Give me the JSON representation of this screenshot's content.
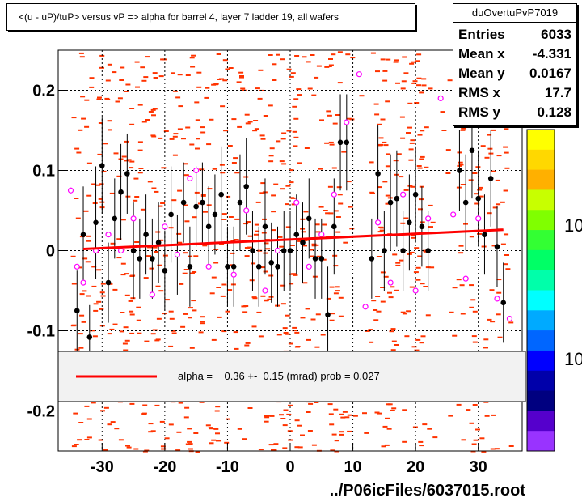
{
  "title": "<(u - uP)/tuP> versus   vP => alpha for barrel 4, layer 7 ladder 19, all wafers",
  "stats": {
    "name": "duOvertuPvP7019",
    "rows": [
      {
        "key": "Entries",
        "value": "6033"
      },
      {
        "key": "Mean x",
        "value": "-4.331"
      },
      {
        "key": "Mean y",
        "value": "0.0167"
      },
      {
        "key": "RMS x",
        "value": "17.7"
      },
      {
        "key": "RMS y",
        "value": "0.128"
      }
    ]
  },
  "fit_text": "alpha =    0.36 +-  0.15 (mrad) prob = 0.027",
  "file_label": "../P06icFiles/6037015.root",
  "colorbar_labels": [
    "10",
    "10"
  ],
  "colors": {
    "fit": "#ff0000",
    "hist": "#ff3300",
    "profile": "#000000",
    "open": "#ff00ff"
  },
  "chart_data": {
    "type": "scatter",
    "xlim": [
      -37,
      37
    ],
    "ylim": [
      -0.25,
      0.25
    ],
    "x_ticks": [
      -30,
      -20,
      -10,
      0,
      10,
      20,
      30
    ],
    "y_ticks": [
      -0.2,
      -0.1,
      0,
      0.1,
      0.2
    ],
    "x_tick_labels": [
      "-30",
      "-20",
      "-10",
      "0",
      "10",
      "20",
      "30"
    ],
    "y_tick_labels": [
      "-0.2",
      "-0.1",
      "0",
      "0.1",
      "0.2"
    ],
    "fit_line": {
      "x": [
        -33,
        34
      ],
      "y": [
        0.002,
        0.026
      ]
    },
    "profile_points": [
      {
        "x": -34,
        "y": -0.075,
        "e": 0.05
      },
      {
        "x": -33,
        "y": 0.02,
        "e": 0.06
      },
      {
        "x": -32,
        "y": -0.108,
        "e": 0.04
      },
      {
        "x": -31,
        "y": 0.035,
        "e": 0.07
      },
      {
        "x": -30,
        "y": 0.106,
        "e": 0.06
      },
      {
        "x": -29,
        "y": -0.04,
        "e": 0.05
      },
      {
        "x": -28,
        "y": 0.04,
        "e": 0.05
      },
      {
        "x": -27,
        "y": 0.073,
        "e": 0.06
      },
      {
        "x": -26,
        "y": 0.096,
        "e": 0.05
      },
      {
        "x": -25,
        "y": 0.0,
        "e": 0.06
      },
      {
        "x": -24,
        "y": -0.01,
        "e": 0.05
      },
      {
        "x": -23,
        "y": 0.02,
        "e": 0.05
      },
      {
        "x": -22,
        "y": -0.01,
        "e": 0.05
      },
      {
        "x": -21,
        "y": 0.01,
        "e": 0.05
      },
      {
        "x": -20,
        "y": -0.025,
        "e": 0.05
      },
      {
        "x": -19,
        "y": 0.045,
        "e": 0.06
      },
      {
        "x": -18,
        "y": -0.005,
        "e": 0.05
      },
      {
        "x": -17,
        "y": 0.06,
        "e": 0.05
      },
      {
        "x": -16,
        "y": -0.02,
        "e": 0.05
      },
      {
        "x": -15,
        "y": 0.055,
        "e": 0.05
      },
      {
        "x": -14,
        "y": 0.06,
        "e": 0.05
      },
      {
        "x": -13,
        "y": 0.03,
        "e": 0.05
      },
      {
        "x": -12,
        "y": 0.045,
        "e": 0.05
      },
      {
        "x": -11,
        "y": 0.07,
        "e": 0.06
      },
      {
        "x": -10,
        "y": -0.02,
        "e": 0.05
      },
      {
        "x": -9,
        "y": -0.02,
        "e": 0.05
      },
      {
        "x": -8,
        "y": 0.06,
        "e": 0.06
      },
      {
        "x": -7,
        "y": 0.08,
        "e": 0.06
      },
      {
        "x": -6,
        "y": 0.0,
        "e": 0.05
      },
      {
        "x": -5,
        "y": -0.02,
        "e": 0.05
      },
      {
        "x": -4,
        "y": 0.03,
        "e": 0.06
      },
      {
        "x": -3,
        "y": -0.015,
        "e": 0.05
      },
      {
        "x": -2,
        "y": -0.02,
        "e": 0.05
      },
      {
        "x": -1,
        "y": 0.0,
        "e": 0.05
      },
      {
        "x": 0,
        "y": 0.0,
        "e": 0.05
      },
      {
        "x": 1,
        "y": 0.02,
        "e": 0.05
      },
      {
        "x": 2,
        "y": 0.01,
        "e": 0.05
      },
      {
        "x": 3,
        "y": 0.04,
        "e": 0.05
      },
      {
        "x": 4,
        "y": -0.01,
        "e": 0.05
      },
      {
        "x": 5,
        "y": -0.01,
        "e": 0.05
      },
      {
        "x": 6,
        "y": -0.08,
        "e": 0.06
      },
      {
        "x": 7,
        "y": 0.03,
        "e": 0.06
      },
      {
        "x": 8,
        "y": 0.135,
        "e": 0.06
      },
      {
        "x": 9,
        "y": 0.135,
        "e": 0.06
      },
      {
        "x": 13,
        "y": -0.01,
        "e": 0.05
      },
      {
        "x": 14,
        "y": 0.096,
        "e": 0.06
      },
      {
        "x": 15,
        "y": 0.0,
        "e": 0.05
      },
      {
        "x": 16,
        "y": 0.06,
        "e": 0.06
      },
      {
        "x": 17,
        "y": 0.065,
        "e": 0.06
      },
      {
        "x": 18,
        "y": 0.0,
        "e": 0.05
      },
      {
        "x": 19,
        "y": 0.035,
        "e": 0.06
      },
      {
        "x": 20,
        "y": 0.07,
        "e": 0.06
      },
      {
        "x": 21,
        "y": 0.03,
        "e": 0.05
      },
      {
        "x": 22,
        "y": 0.0,
        "e": 0.05
      },
      {
        "x": 27,
        "y": 0.1,
        "e": 0.05
      },
      {
        "x": 28,
        "y": 0.06,
        "e": 0.06
      },
      {
        "x": 29,
        "y": 0.125,
        "e": 0.06
      },
      {
        "x": 30,
        "y": 0.065,
        "e": 0.06
      },
      {
        "x": 31,
        "y": 0.02,
        "e": 0.05
      },
      {
        "x": 32,
        "y": 0.09,
        "e": 0.06
      },
      {
        "x": 33,
        "y": 0.005,
        "e": 0.05
      },
      {
        "x": 34,
        "y": -0.065,
        "e": 0.05
      }
    ],
    "open_points": [
      {
        "x": -35,
        "y": 0.075
      },
      {
        "x": -34,
        "y": -0.02
      },
      {
        "x": -33,
        "y": -0.04
      },
      {
        "x": -31,
        "y": 0.0
      },
      {
        "x": -29,
        "y": 0.02
      },
      {
        "x": -27,
        "y": 0.0
      },
      {
        "x": -25,
        "y": 0.04
      },
      {
        "x": -22,
        "y": -0.055
      },
      {
        "x": -20,
        "y": 0.03
      },
      {
        "x": -18,
        "y": -0.005
      },
      {
        "x": -16,
        "y": 0.09
      },
      {
        "x": -15,
        "y": 0.1
      },
      {
        "x": -13,
        "y": -0.02
      },
      {
        "x": -9,
        "y": -0.03
      },
      {
        "x": -7,
        "y": 0.05
      },
      {
        "x": -4,
        "y": -0.05
      },
      {
        "x": -2,
        "y": 0.0
      },
      {
        "x": 1,
        "y": 0.06
      },
      {
        "x": 3,
        "y": -0.02
      },
      {
        "x": 5,
        "y": 0.02
      },
      {
        "x": 7,
        "y": 0.07
      },
      {
        "x": 9,
        "y": 0.16
      },
      {
        "x": 11,
        "y": 0.22
      },
      {
        "x": 12,
        "y": -0.07
      },
      {
        "x": 14,
        "y": 0.035
      },
      {
        "x": 16,
        "y": -0.04
      },
      {
        "x": 18,
        "y": 0.07
      },
      {
        "x": 20,
        "y": -0.05
      },
      {
        "x": 22,
        "y": 0.04
      },
      {
        "x": 24,
        "y": 0.19
      },
      {
        "x": 26,
        "y": 0.045
      },
      {
        "x": 28,
        "y": -0.035
      },
      {
        "x": 30,
        "y": 0.04
      },
      {
        "x": 31,
        "y": 0.18
      },
      {
        "x": 33,
        "y": -0.06
      },
      {
        "x": 35,
        "y": -0.085
      }
    ],
    "colorbar": [
      "#ffff00",
      "#ffd800",
      "#ffb000",
      "#c8ff00",
      "#80ff00",
      "#33ff33",
      "#00ff66",
      "#00ffaa",
      "#00ffff",
      "#00aaff",
      "#0066ff",
      "#0000ff",
      "#0000aa",
      "#000080",
      "#5500cc",
      "#9933ff"
    ]
  }
}
